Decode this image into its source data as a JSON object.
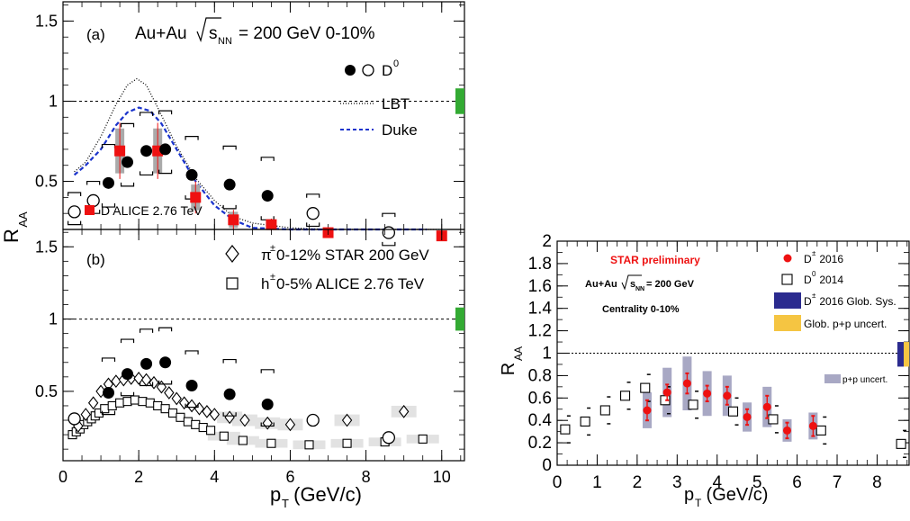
{
  "colors": {
    "red": "#ee1111",
    "blue": "#1a33cc",
    "green": "#33aa33",
    "grey_box": "#aaaaaa",
    "sys_blue": "#2b2b8f",
    "sys_yellow": "#f5c542",
    "pp_uncert": "#a8a8c4",
    "band": "#e2e2e2"
  },
  "chart_data": [
    {
      "panel": "a",
      "type": "scatter",
      "panel_label": "(a)",
      "title": "Au+Au √sNN = 200 GeV 0-10%",
      "title_main": "Au+Au",
      "title_sqrt": "s",
      "title_sub": "NN",
      "title_rest": "= 200 GeV 0-10%",
      "ylabel": "R",
      "ylabel_sub": "AA",
      "xlim": [
        0,
        10.6
      ],
      "ylim": [
        0.2,
        1.62
      ],
      "y_ticks": [
        0.5,
        1,
        1.5
      ],
      "y_tick_labels": [
        "0.5",
        "1",
        "1.5"
      ],
      "legend": {
        "d0_label": "D",
        "d0_sup": "0",
        "lbt": "LBT",
        "duke": "Duke",
        "alice": "D ALICE 2.76 TeV"
      },
      "series": [
        {
          "name": "D0",
          "marker": "filled-circle",
          "x": [
            1.2,
            1.7,
            2.2,
            2.7,
            3.4,
            4.4,
            5.4
          ],
          "y": [
            0.49,
            0.62,
            0.69,
            0.7,
            0.54,
            0.48,
            0.41
          ]
        },
        {
          "name": "D0",
          "marker": "open-circle",
          "x": [
            0.3,
            0.8,
            6.6,
            8.6
          ],
          "y": [
            0.31,
            0.38,
            0.3,
            0.18
          ]
        },
        {
          "name": "D ALICE 2.76 TeV",
          "marker": "filled-square",
          "x": [
            1.5,
            2.5,
            3.5,
            4.5,
            5.5,
            7.0,
            10.0
          ],
          "y": [
            0.69,
            0.69,
            0.4,
            0.26,
            0.23,
            0.18,
            0.16
          ]
        },
        {
          "name": "LBT",
          "style": "dotted",
          "x": [
            0.3,
            0.6,
            1.0,
            1.4,
            1.7,
            1.95,
            2.2,
            2.5,
            3.0,
            3.5,
            4.0,
            4.5,
            5.0,
            6.0,
            7.0,
            8.0,
            9.0,
            10.0
          ],
          "y": [
            0.56,
            0.62,
            0.78,
            0.98,
            1.1,
            1.14,
            1.1,
            0.96,
            0.72,
            0.52,
            0.38,
            0.28,
            0.24,
            0.21,
            0.2,
            0.19,
            0.19,
            0.19
          ]
        },
        {
          "name": "Duke",
          "style": "dashed",
          "x": [
            0.3,
            0.6,
            1.0,
            1.4,
            1.7,
            2.0,
            2.3,
            2.6,
            3.0,
            3.5,
            4.0,
            4.5,
            5.0,
            6.0,
            7.0,
            8.0,
            8.6,
            9.0,
            9.4,
            9.6
          ],
          "y": [
            0.54,
            0.6,
            0.7,
            0.85,
            0.93,
            0.96,
            0.94,
            0.86,
            0.7,
            0.5,
            0.35,
            0.26,
            0.21,
            0.19,
            0.18,
            0.17,
            0.18,
            0.15,
            0.07,
            0.02
          ]
        }
      ]
    },
    {
      "panel": "b",
      "type": "scatter",
      "panel_label": "(b)",
      "xlabel": "p",
      "xlabel_sub": "T",
      "xlabel_rest": " (GeV/c)",
      "xlim": [
        0,
        10.6
      ],
      "ylim": [
        0.02,
        1.62
      ],
      "x_ticks": [
        0,
        2,
        4,
        6,
        8,
        10
      ],
      "x_tick_labels": [
        "0",
        "2",
        "4",
        "6",
        "8",
        "10"
      ],
      "y_ticks": [
        0.5,
        1,
        1.5
      ],
      "y_tick_labels": [
        "0.5",
        "1",
        "1.5"
      ],
      "legend": {
        "pi_sym": "π",
        "pi_sup": "±",
        "pi_rest": " 0-12% STAR 200 GeV",
        "h_sym": "h",
        "h_sup": "±",
        "h_rest": " 0-5% ALICE 2.76 TeV"
      },
      "series": [
        {
          "name": "D0",
          "marker": "filled-circle",
          "x": [
            1.2,
            1.7,
            2.2,
            2.7,
            3.4,
            4.4,
            5.4
          ],
          "y": [
            0.49,
            0.62,
            0.69,
            0.7,
            0.54,
            0.48,
            0.41
          ]
        },
        {
          "name": "D0",
          "marker": "open-circle",
          "x": [
            0.3,
            8.6,
            6.6
          ],
          "y": [
            0.31,
            0.18,
            0.3
          ]
        },
        {
          "name": "π± 0-12% STAR 200 GeV",
          "marker": "open-diamond",
          "x": [
            0.4,
            0.6,
            0.8,
            1.0,
            1.2,
            1.4,
            1.6,
            1.8,
            2.0,
            2.2,
            2.4,
            2.6,
            2.8,
            3.0,
            3.2,
            3.4,
            3.6,
            3.8,
            4.0,
            4.4,
            4.8,
            5.4,
            6.0,
            7.5,
            9.0
          ],
          "y": [
            0.26,
            0.34,
            0.42,
            0.5,
            0.55,
            0.57,
            0.58,
            0.59,
            0.59,
            0.58,
            0.56,
            0.53,
            0.49,
            0.45,
            0.42,
            0.4,
            0.38,
            0.36,
            0.34,
            0.32,
            0.3,
            0.28,
            0.27,
            0.3,
            0.36
          ]
        },
        {
          "name": "h± 0-5% ALICE 2.76 TeV",
          "marker": "open-square",
          "x": [
            0.25,
            0.35,
            0.45,
            0.55,
            0.65,
            0.75,
            0.85,
            0.95,
            1.1,
            1.3,
            1.5,
            1.7,
            1.9,
            2.1,
            2.3,
            2.5,
            2.7,
            2.9,
            3.1,
            3.3,
            3.5,
            3.7,
            3.9,
            4.25,
            4.75,
            5.5,
            6.5,
            7.5,
            8.5,
            9.5
          ],
          "y": [
            0.2,
            0.22,
            0.24,
            0.27,
            0.29,
            0.31,
            0.33,
            0.35,
            0.38,
            0.4,
            0.42,
            0.43,
            0.44,
            0.43,
            0.42,
            0.4,
            0.38,
            0.35,
            0.32,
            0.29,
            0.27,
            0.25,
            0.23,
            0.19,
            0.16,
            0.14,
            0.13,
            0.14,
            0.15,
            0.17
          ]
        }
      ]
    },
    {
      "panel": "right",
      "type": "scatter",
      "ylabel": "R",
      "ylabel_sub": "AA",
      "xlabel": "p",
      "xlabel_sub": "T",
      "xlabel_rest": " (GeV/c)",
      "xlim": [
        0,
        8.8
      ],
      "ylim": [
        0,
        2.0
      ],
      "x_ticks": [
        0,
        1,
        2,
        3,
        4,
        5,
        6,
        7,
        8
      ],
      "x_tick_labels": [
        "0",
        "1",
        "2",
        "3",
        "4",
        "5",
        "6",
        "7",
        "8"
      ],
      "y_ticks": [
        0,
        0.2,
        0.4,
        0.6,
        0.8,
        1,
        1.2,
        1.4,
        1.6,
        1.8,
        2
      ],
      "y_tick_labels": [
        "0",
        "0.2",
        "0.4",
        "0.6",
        "0.8",
        "1",
        "1.2",
        "1.4",
        "1.6",
        "1.8",
        "2"
      ],
      "text": {
        "prelim": "STAR preliminary",
        "system_main": "Au+Au",
        "system_sqrt": "s",
        "system_sub": "NN",
        "system_rest": "= 200 GeV",
        "centrality": "Centrality 0-10%"
      },
      "legend": {
        "dpm_sym": "D",
        "dpm_sup": "±",
        "dpm_rest": " 2016",
        "d0_sym": "D",
        "d0_sup": "0",
        "d0_rest": " 2014",
        "sys_sym": "D",
        "sys_sup": "±",
        "sys_rest": " 2016 Glob. Sys.",
        "pp_glob": "Glob. p+p uncert.",
        "pp_uncert": "p+p uncert."
      },
      "series": [
        {
          "name": "D± 2016",
          "marker": "filled-circle",
          "x": [
            2.25,
            2.75,
            3.25,
            3.75,
            4.25,
            4.75,
            5.25,
            5.75,
            6.4
          ],
          "y": [
            0.49,
            0.65,
            0.73,
            0.64,
            0.62,
            0.43,
            0.52,
            0.31,
            0.35
          ],
          "err": [
            0.09,
            0.07,
            0.09,
            0.07,
            0.08,
            0.07,
            0.1,
            0.07,
            0.09
          ]
        },
        {
          "name": "D0 2014",
          "marker": "open-square",
          "x": [
            0.2,
            0.7,
            1.2,
            1.7,
            2.2,
            2.7,
            3.4,
            4.4,
            5.4,
            6.6,
            8.6
          ],
          "y": [
            0.32,
            0.39,
            0.49,
            0.62,
            0.69,
            0.58,
            0.54,
            0.48,
            0.41,
            0.31,
            0.19
          ]
        }
      ]
    }
  ]
}
